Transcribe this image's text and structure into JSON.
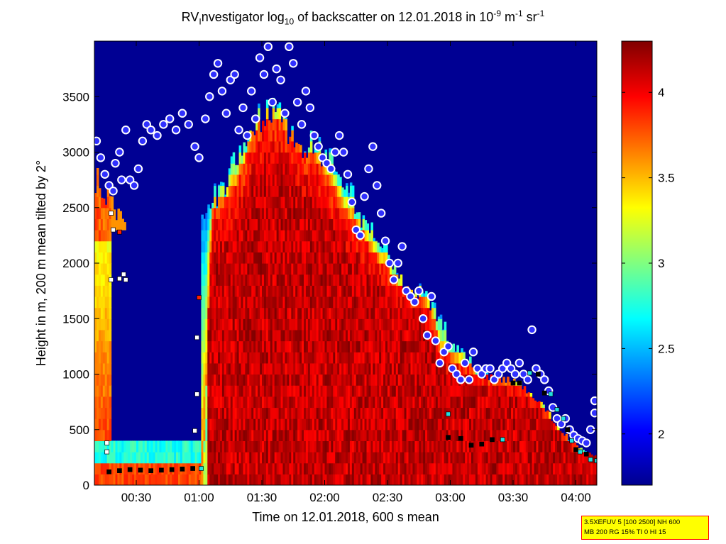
{
  "title": {
    "prefix": "RV",
    "sub1": "I",
    "part2": "nvestigator log",
    "sub2": "10",
    "part3": " of backscatter on 12.01.2018 in 10",
    "sup1": "-9",
    "part4": " m",
    "sup2": "-1",
    "part5": " sr",
    "sup3": "-1"
  },
  "chart_data": {
    "type": "heatmap",
    "title": "RVInvestigator log10 of backscatter on 12.01.2018 in 10^-9 m^-1 sr^-1",
    "xlabel": "Time on 12.01.2018, 600 s mean",
    "ylabel": "Height in m, 200 m mean tilted by 2°",
    "x_unit": "minutes after 00:00",
    "xlim": [
      10,
      250
    ],
    "ylim": [
      0,
      4000
    ],
    "x_ticks": [
      {
        "value": 30,
        "label": "00:30"
      },
      {
        "value": 60,
        "label": "01:00"
      },
      {
        "value": 90,
        "label": "01:30"
      },
      {
        "value": 120,
        "label": "02:00"
      },
      {
        "value": 150,
        "label": "02:30"
      },
      {
        "value": 180,
        "label": "03:00"
      },
      {
        "value": 210,
        "label": "03:30"
      },
      {
        "value": 240,
        "label": "04:00"
      }
    ],
    "y_ticks": [
      {
        "value": 0,
        "label": "0"
      },
      {
        "value": 500,
        "label": "500"
      },
      {
        "value": 1000,
        "label": "1000"
      },
      {
        "value": 1500,
        "label": "1500"
      },
      {
        "value": 2000,
        "label": "2000"
      },
      {
        "value": 2500,
        "label": "2500"
      },
      {
        "value": 3000,
        "label": "3000"
      },
      {
        "value": 3500,
        "label": "3500"
      }
    ],
    "colorbar": {
      "min": 1.7,
      "max": 4.3,
      "colormap": "jet",
      "ticks": [
        {
          "value": 2,
          "label": "2"
        },
        {
          "value": 2.5,
          "label": "2.5"
        },
        {
          "value": 3,
          "label": "3"
        },
        {
          "value": 3.5,
          "label": "3.5"
        },
        {
          "value": 4,
          "label": "4"
        }
      ]
    },
    "background_value": 1.75,
    "aerosol_top_m": [
      [
        10,
        2800
      ],
      [
        15,
        2650
      ],
      [
        20,
        2500
      ],
      [
        25,
        2450
      ],
      [
        30,
        2400
      ],
      [
        35,
        2350
      ],
      [
        40,
        2300
      ],
      [
        45,
        2300
      ],
      [
        50,
        2350
      ],
      [
        55,
        2380
      ],
      [
        60,
        2450
      ],
      [
        65,
        2600
      ],
      [
        70,
        2700
      ],
      [
        75,
        2900
      ],
      [
        80,
        3050
      ],
      [
        85,
        3250
      ],
      [
        90,
        3400
      ],
      [
        95,
        3400
      ],
      [
        100,
        3300
      ],
      [
        105,
        3150
      ],
      [
        110,
        3100
      ],
      [
        115,
        3100
      ],
      [
        120,
        3000
      ],
      [
        125,
        2900
      ],
      [
        130,
        2750
      ],
      [
        135,
        2500
      ],
      [
        140,
        2350
      ],
      [
        145,
        2200
      ],
      [
        150,
        2100
      ],
      [
        155,
        1900
      ],
      [
        160,
        1800
      ],
      [
        165,
        1750
      ],
      [
        170,
        1650
      ],
      [
        175,
        1500
      ],
      [
        180,
        1300
      ],
      [
        185,
        1200
      ],
      [
        190,
        1100
      ],
      [
        195,
        1000
      ],
      [
        200,
        950
      ],
      [
        205,
        950
      ],
      [
        210,
        950
      ],
      [
        215,
        900
      ],
      [
        220,
        800
      ],
      [
        225,
        700
      ],
      [
        230,
        550
      ],
      [
        235,
        450
      ],
      [
        240,
        350
      ],
      [
        245,
        300
      ],
      [
        250,
        250
      ]
    ],
    "dense_layer": {
      "start_min": 61,
      "end_min": 250,
      "top_m": [
        [
          61,
          0
        ],
        [
          62,
          400
        ],
        [
          63,
          900
        ],
        [
          64,
          1600
        ],
        [
          65,
          2100
        ],
        [
          66,
          2400
        ],
        [
          70,
          2500
        ],
        [
          75,
          2600
        ],
        [
          80,
          2800
        ],
        [
          85,
          3100
        ],
        [
          90,
          3250
        ],
        [
          95,
          3250
        ],
        [
          100,
          3200
        ],
        [
          105,
          3050
        ],
        [
          110,
          2950
        ],
        [
          115,
          2900
        ],
        [
          120,
          2750
        ],
        [
          125,
          2600
        ],
        [
          130,
          2400
        ],
        [
          135,
          2300
        ],
        [
          140,
          2150
        ],
        [
          145,
          2000
        ],
        [
          150,
          1900
        ],
        [
          155,
          1750
        ],
        [
          160,
          1700
        ],
        [
          165,
          1650
        ],
        [
          170,
          1550
        ],
        [
          172,
          1400
        ],
        [
          175,
          1150
        ],
        [
          180,
          1100
        ],
        [
          185,
          1050
        ],
        [
          190,
          1000
        ],
        [
          195,
          950
        ],
        [
          200,
          900
        ],
        [
          205,
          900
        ],
        [
          210,
          900
        ],
        [
          215,
          850
        ],
        [
          220,
          750
        ],
        [
          225,
          650
        ],
        [
          230,
          500
        ],
        [
          235,
          400
        ],
        [
          240,
          300
        ],
        [
          245,
          250
        ],
        [
          250,
          220
        ]
      ]
    },
    "cloud_base_markers": {
      "color": "white-ringed blue dots",
      "points": [
        [
          11,
          3100
        ],
        [
          13,
          2950
        ],
        [
          15,
          2800
        ],
        [
          17,
          2700
        ],
        [
          19,
          2650
        ],
        [
          20,
          2900
        ],
        [
          22,
          3000
        ],
        [
          23,
          2750
        ],
        [
          25,
          3200
        ],
        [
          27,
          2750
        ],
        [
          29,
          2700
        ],
        [
          31,
          2850
        ],
        [
          33,
          3100
        ],
        [
          35,
          3250
        ],
        [
          37,
          3200
        ],
        [
          40,
          3150
        ],
        [
          43,
          3250
        ],
        [
          46,
          3300
        ],
        [
          49,
          3200
        ],
        [
          52,
          3350
        ],
        [
          55,
          3250
        ],
        [
          58,
          3050
        ],
        [
          60,
          2950
        ],
        [
          63,
          3300
        ],
        [
          65,
          3500
        ],
        [
          67,
          3700
        ],
        [
          69,
          3800
        ],
        [
          71,
          3550
        ],
        [
          73,
          3350
        ],
        [
          75,
          3650
        ],
        [
          77,
          3700
        ],
        [
          79,
          3200
        ],
        [
          81,
          3400
        ],
        [
          83,
          3150
        ],
        [
          85,
          3550
        ],
        [
          87,
          3300
        ],
        [
          89,
          3850
        ],
        [
          91,
          3700
        ],
        [
          93,
          3950
        ],
        [
          95,
          3450
        ],
        [
          97,
          3750
        ],
        [
          99,
          3650
        ],
        [
          101,
          3350
        ],
        [
          103,
          3950
        ],
        [
          105,
          3800
        ],
        [
          107,
          3450
        ],
        [
          109,
          3250
        ],
        [
          111,
          3550
        ],
        [
          113,
          3400
        ],
        [
          115,
          3150
        ],
        [
          117,
          3050
        ],
        [
          119,
          2950
        ],
        [
          121,
          2900
        ],
        [
          123,
          2850
        ],
        [
          125,
          3000
        ],
        [
          127,
          3150
        ],
        [
          129,
          3000
        ],
        [
          131,
          2800
        ],
        [
          133,
          2550
        ],
        [
          135,
          2300
        ],
        [
          137,
          2250
        ],
        [
          139,
          2600
        ],
        [
          141,
          2850
        ],
        [
          143,
          3050
        ],
        [
          145,
          2700
        ],
        [
          147,
          2450
        ],
        [
          149,
          2200
        ],
        [
          151,
          2000
        ],
        [
          153,
          1850
        ],
        [
          155,
          2000
        ],
        [
          157,
          2150
        ],
        [
          159,
          1750
        ],
        [
          161,
          1700
        ],
        [
          163,
          1650
        ],
        [
          165,
          1750
        ],
        [
          167,
          1500
        ],
        [
          169,
          1350
        ],
        [
          171,
          1700
        ],
        [
          173,
          1300
        ],
        [
          175,
          1100
        ],
        [
          177,
          1200
        ],
        [
          179,
          1250
        ],
        [
          181,
          1050
        ],
        [
          183,
          1000
        ],
        [
          185,
          950
        ],
        [
          187,
          1100
        ],
        [
          189,
          950
        ],
        [
          191,
          1200
        ],
        [
          193,
          1050
        ],
        [
          195,
          1000
        ],
        [
          197,
          1050
        ],
        [
          199,
          1050
        ],
        [
          201,
          950
        ],
        [
          203,
          1000
        ],
        [
          205,
          1050
        ],
        [
          207,
          1100
        ],
        [
          209,
          1050
        ],
        [
          211,
          1000
        ],
        [
          213,
          1100
        ],
        [
          215,
          1000
        ],
        [
          217,
          950
        ],
        [
          219,
          1400
        ],
        [
          221,
          1050
        ],
        [
          223,
          1000
        ],
        [
          225,
          950
        ],
        [
          227,
          850
        ],
        [
          229,
          700
        ],
        [
          231,
          600
        ],
        [
          233,
          550
        ],
        [
          235,
          600
        ],
        [
          237,
          500
        ],
        [
          239,
          450
        ],
        [
          241,
          420
        ],
        [
          243,
          400
        ],
        [
          245,
          380
        ],
        [
          247,
          500
        ],
        [
          249,
          650
        ],
        [
          249,
          760
        ]
      ]
    },
    "layer_markers": {
      "colors": [
        "black",
        "cyan",
        "white"
      ],
      "points": [
        [
          17,
          120,
          "black"
        ],
        [
          22,
          130,
          "black"
        ],
        [
          27,
          140,
          "black"
        ],
        [
          32,
          135,
          "black"
        ],
        [
          37,
          130,
          "black"
        ],
        [
          42,
          135,
          "black"
        ],
        [
          47,
          140,
          "black"
        ],
        [
          52,
          145,
          "black"
        ],
        [
          57,
          150,
          "black"
        ],
        [
          61,
          150,
          "cyan"
        ],
        [
          59,
          1330,
          "white"
        ],
        [
          59,
          820,
          "white"
        ],
        [
          58,
          490,
          "white"
        ],
        [
          60,
          1690,
          "red"
        ],
        [
          16,
          380,
          "white"
        ],
        [
          16,
          300,
          "white"
        ],
        [
          18,
          1850,
          "white"
        ],
        [
          22,
          1860,
          "white"
        ],
        [
          25,
          1850,
          "white"
        ],
        [
          24,
          1900,
          "white"
        ],
        [
          18,
          2450,
          "white"
        ],
        [
          19,
          2300,
          "white"
        ],
        [
          22,
          2280,
          "red"
        ],
        [
          179,
          640,
          "cyan"
        ],
        [
          179,
          430,
          "black"
        ],
        [
          185,
          420,
          "black"
        ],
        [
          190,
          360,
          "black"
        ],
        [
          195,
          370,
          "black"
        ],
        [
          200,
          410,
          "black"
        ],
        [
          205,
          410,
          "cyan"
        ],
        [
          210,
          920,
          "black"
        ],
        [
          213,
          920,
          "black"
        ],
        [
          218,
          1010,
          "cyan"
        ],
        [
          222,
          1000,
          "black"
        ],
        [
          225,
          830,
          "black"
        ],
        [
          228,
          820,
          "cyan"
        ],
        [
          231,
          680,
          "cyan"
        ],
        [
          234,
          600,
          "cyan"
        ],
        [
          236,
          500,
          "black"
        ],
        [
          238,
          400,
          "cyan"
        ],
        [
          240,
          320,
          "black"
        ],
        [
          242,
          300,
          "cyan"
        ],
        [
          245,
          280,
          "black"
        ],
        [
          247,
          230,
          "cyan"
        ],
        [
          250,
          220,
          "cyan"
        ]
      ]
    }
  },
  "infobox": {
    "line1": "3.5XEFUV 5 [100 2500] NH 600",
    "line2": "MB 200 RG 15% TI 0 HI 15"
  }
}
